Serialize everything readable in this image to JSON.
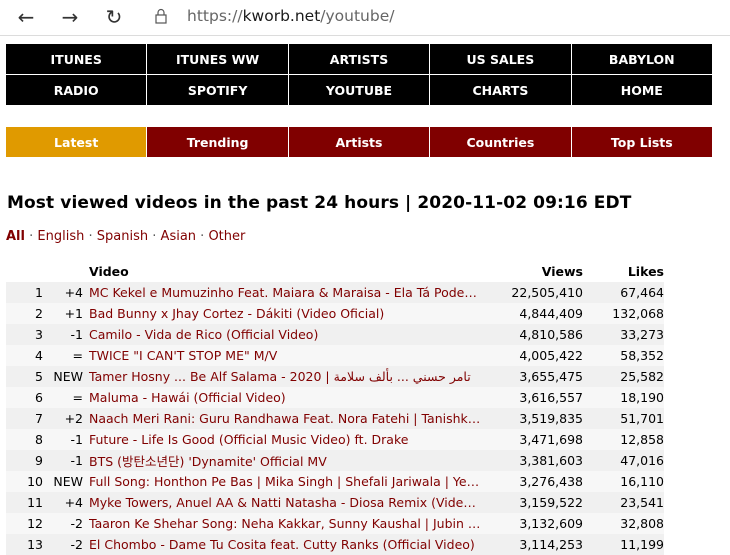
{
  "browser": {
    "url_scheme": "https://",
    "url_host": "kworb.net",
    "url_path": "/youtube/"
  },
  "nav": [
    "ITUNES",
    "ITUNES WW",
    "ARTISTS",
    "US SALES",
    "BABYLON",
    "RADIO",
    "SPOTIFY",
    "YOUTUBE",
    "CHARTS",
    "HOME"
  ],
  "tabs": [
    {
      "label": "Latest",
      "active": true
    },
    {
      "label": "Trending"
    },
    {
      "label": "Artists"
    },
    {
      "label": "Countries"
    },
    {
      "label": "Top Lists"
    }
  ],
  "colors": {
    "nav_bg": "#000000",
    "tab_bg": "#800000",
    "tab_active": "#e09a00",
    "link": "#800000"
  },
  "title": "Most viewed videos in the past 24 hours | 2020-11-02 09:16 EDT",
  "filters": {
    "active": "All",
    "others": [
      "English",
      "Spanish",
      "Asian",
      "Other"
    ],
    "separator": "·"
  },
  "table": {
    "headers": {
      "video": "Video",
      "views": "Views",
      "likes": "Likes"
    },
    "rows": [
      {
        "rank": "1",
        "change": "+4",
        "title": "MC Kekel e Mumuzinho Feat. Maiara & Maraisa - Ela Tá Podend...",
        "views": "22,505,410",
        "likes": "67,464"
      },
      {
        "rank": "2",
        "change": "+1",
        "title": "Bad Bunny x Jhay Cortez - Dákiti (Video Oficial)",
        "views": "4,844,409",
        "likes": "132,068"
      },
      {
        "rank": "3",
        "change": "-1",
        "title": "Camilo - Vida de Rico (Official Video)",
        "views": "4,810,586",
        "likes": "33,273"
      },
      {
        "rank": "4",
        "change": "=",
        "title": "TWICE \"I CAN'T STOP ME\" M/V",
        "views": "4,005,422",
        "likes": "58,352"
      },
      {
        "rank": "5",
        "change": "NEW",
        "title": "Tamer Hosny ... Be Alf Salama - 2020 | تامر حسني ... بألف سلامة",
        "views": "3,655,475",
        "likes": "25,582"
      },
      {
        "rank": "6",
        "change": "=",
        "title": "Maluma - Hawái (Official Video)",
        "views": "3,616,557",
        "likes": "18,190"
      },
      {
        "rank": "7",
        "change": "+2",
        "title": "Naach Meri Rani: Guru Randhawa Feat. Nora Fatehi | Tanishk B...",
        "views": "3,519,835",
        "likes": "51,701"
      },
      {
        "rank": "8",
        "change": "-1",
        "title": "Future - Life Is Good (Official Music Video) ft. Drake",
        "views": "3,471,698",
        "likes": "12,858"
      },
      {
        "rank": "9",
        "change": "-1",
        "title": "BTS (방탄소년단) 'Dynamite' Official MV",
        "views": "3,381,603",
        "likes": "47,016"
      },
      {
        "rank": "10",
        "change": "NEW",
        "title": "Full Song: Honthon Pe Bas | Mika Singh | Shefali Jariwala | Yeh...",
        "views": "3,276,438",
        "likes": "16,110"
      },
      {
        "rank": "11",
        "change": "+4",
        "title": "Myke Towers, Anuel AA & Natti Natasha - Diosa Remix (Video ...",
        "views": "3,159,522",
        "likes": "23,541"
      },
      {
        "rank": "12",
        "change": "-2",
        "title": "Taaron Ke Shehar Song: Neha Kakkar, Sunny Kaushal | Jubin N...",
        "views": "3,132,609",
        "likes": "32,808"
      },
      {
        "rank": "13",
        "change": "-2",
        "title": "El Chombo - Dame Tu Cosita feat. Cutty Ranks (Official Video)",
        "views": "3,114,253",
        "likes": "11,199"
      }
    ]
  }
}
